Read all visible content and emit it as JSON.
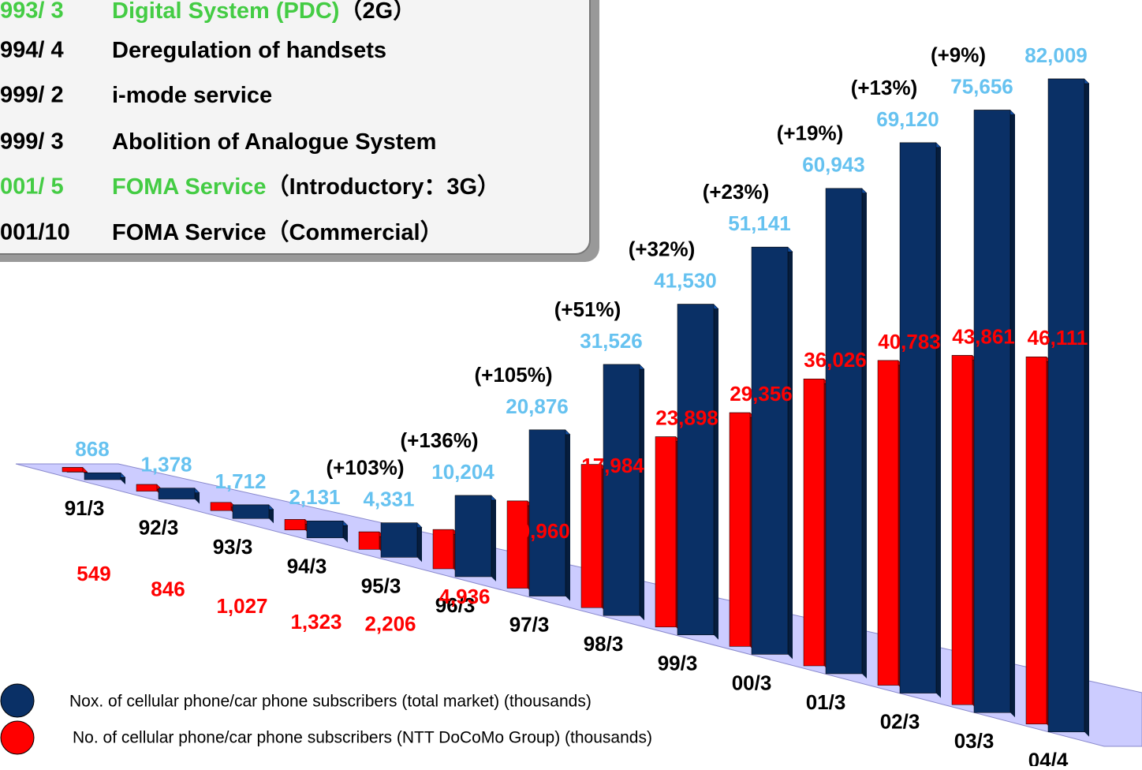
{
  "chart_data": {
    "type": "bar3d",
    "categories": [
      "91/3",
      "92/3",
      "93/3",
      "94/3",
      "95/3",
      "96/3",
      "97/3",
      "98/3",
      "99/3",
      "00/3",
      "01/3",
      "02/3",
      "03/3",
      "04/4"
    ],
    "series": [
      {
        "name": "No. of cellular phone/car phone subscribers (NTT DoCoMo Group) (thousands)",
        "color": "#ff0000",
        "label_color": "#ff0000",
        "values": [
          549,
          846,
          1027,
          1323,
          2206,
          4936,
          10960,
          17984,
          23898,
          29356,
          36026,
          40783,
          43861,
          46111
        ],
        "value_labels": [
          "549",
          "846",
          "1,027",
          "1,323",
          "2,206",
          "4,936",
          "10,960",
          "17,984",
          "23,898",
          "29,356",
          "36,026",
          "40,783",
          "43,861",
          "46,111"
        ]
      },
      {
        "name": "Nox. of cellular phone/car phone subscribers (total market) (thousands)",
        "color": "#0a3066",
        "label_color": "#66c2f0",
        "values": [
          868,
          1378,
          1712,
          2131,
          4331,
          10204,
          20876,
          31526,
          41530,
          51141,
          60943,
          69120,
          75656,
          82009
        ],
        "value_labels": [
          "868",
          "1,378",
          "1,712",
          "2,131",
          "4,331",
          "10,204",
          "20,876",
          "31,526",
          "41,530",
          "51,141",
          "60,943",
          "69,120",
          "75,656",
          "82,009"
        ]
      }
    ],
    "growth_labels": [
      null,
      null,
      null,
      null,
      "(+103%)",
      "(+136%)",
      "(+105%)",
      "(+51%)",
      "(+32%)",
      "(+23%)",
      "(+19%)",
      "(+13%)",
      "(+9%)",
      null
    ],
    "ylim": [
      0,
      85000
    ],
    "events": [
      {
        "date": "993/ 3",
        "text": "Digital System (PDC)",
        "note": "（2G）",
        "color": "#44cc44"
      },
      {
        "date": "994/ 4",
        "text": "Deregulation of handsets",
        "color": "#000000"
      },
      {
        "date": "999/ 2",
        "text": "i-mode service",
        "color": "#000000"
      },
      {
        "date": "999/ 3",
        "text": "Abolition of Analogue System",
        "color": "#000000"
      },
      {
        "date": "001/ 5",
        "text": "FOMA  Service",
        "note": "（Introductory：3G）",
        "color": "#44cc44"
      },
      {
        "date": "001/10",
        "text": "FOMA Service（Commercial）",
        "color": "#000000"
      }
    ]
  }
}
